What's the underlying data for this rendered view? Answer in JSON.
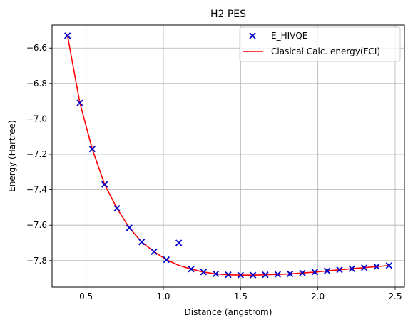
{
  "chart_data": {
    "type": "line",
    "title": "H2 PES",
    "xlabel": "Distance (angstrom)",
    "ylabel": "Energy (Hartree)",
    "xlim": [
      0.28,
      2.56
    ],
    "ylim": [
      -7.95,
      -6.47
    ],
    "xticks": [
      0.5,
      1.0,
      1.5,
      2.0,
      2.5
    ],
    "xtick_labels": [
      "0.5",
      "1.0",
      "1.5",
      "2.0",
      "2.5"
    ],
    "yticks": [
      -6.6,
      -6.8,
      -7.0,
      -7.2,
      -7.4,
      -7.6,
      -7.8
    ],
    "ytick_labels": [
      "−6.6",
      "−6.8",
      "−7.0",
      "−7.2",
      "−7.4",
      "−7.6",
      "−7.8"
    ],
    "grid": true,
    "legend_position": "top-right",
    "series": [
      {
        "name": "E_HIVQE",
        "kind": "scatter",
        "marker": "x",
        "color": "#0000cc",
        "x": [
          0.38,
          0.46,
          0.54,
          0.62,
          0.7,
          0.78,
          0.86,
          0.94,
          1.02,
          1.1,
          1.18,
          1.26,
          1.34,
          1.42,
          1.5,
          1.58,
          1.66,
          1.74,
          1.82,
          1.9,
          1.98,
          2.06,
          2.14,
          2.22,
          2.3,
          2.38,
          2.46
        ],
        "y": [
          -6.53,
          -6.91,
          -7.17,
          -7.37,
          -7.505,
          -7.615,
          -7.695,
          -7.75,
          -7.795,
          -7.7,
          -7.848,
          -7.865,
          -7.875,
          -7.88,
          -7.882,
          -7.882,
          -7.88,
          -7.878,
          -7.875,
          -7.87,
          -7.865,
          -7.858,
          -7.852,
          -7.846,
          -7.84,
          -7.834,
          -7.828
        ]
      },
      {
        "name": "Clasical Calc. energy(FCI)",
        "kind": "line",
        "color": "#ff0000",
        "x": [
          0.38,
          0.46,
          0.54,
          0.62,
          0.7,
          0.78,
          0.86,
          0.94,
          1.02,
          1.1,
          1.18,
          1.26,
          1.34,
          1.42,
          1.5,
          1.58,
          1.66,
          1.74,
          1.82,
          1.9,
          1.98,
          2.06,
          2.14,
          2.22,
          2.3,
          2.38,
          2.46
        ],
        "y": [
          -6.53,
          -6.91,
          -7.17,
          -7.37,
          -7.505,
          -7.615,
          -7.695,
          -7.75,
          -7.795,
          -7.827,
          -7.848,
          -7.865,
          -7.875,
          -7.88,
          -7.882,
          -7.882,
          -7.88,
          -7.878,
          -7.875,
          -7.87,
          -7.865,
          -7.858,
          -7.852,
          -7.846,
          -7.84,
          -7.834,
          -7.828
        ]
      }
    ]
  }
}
